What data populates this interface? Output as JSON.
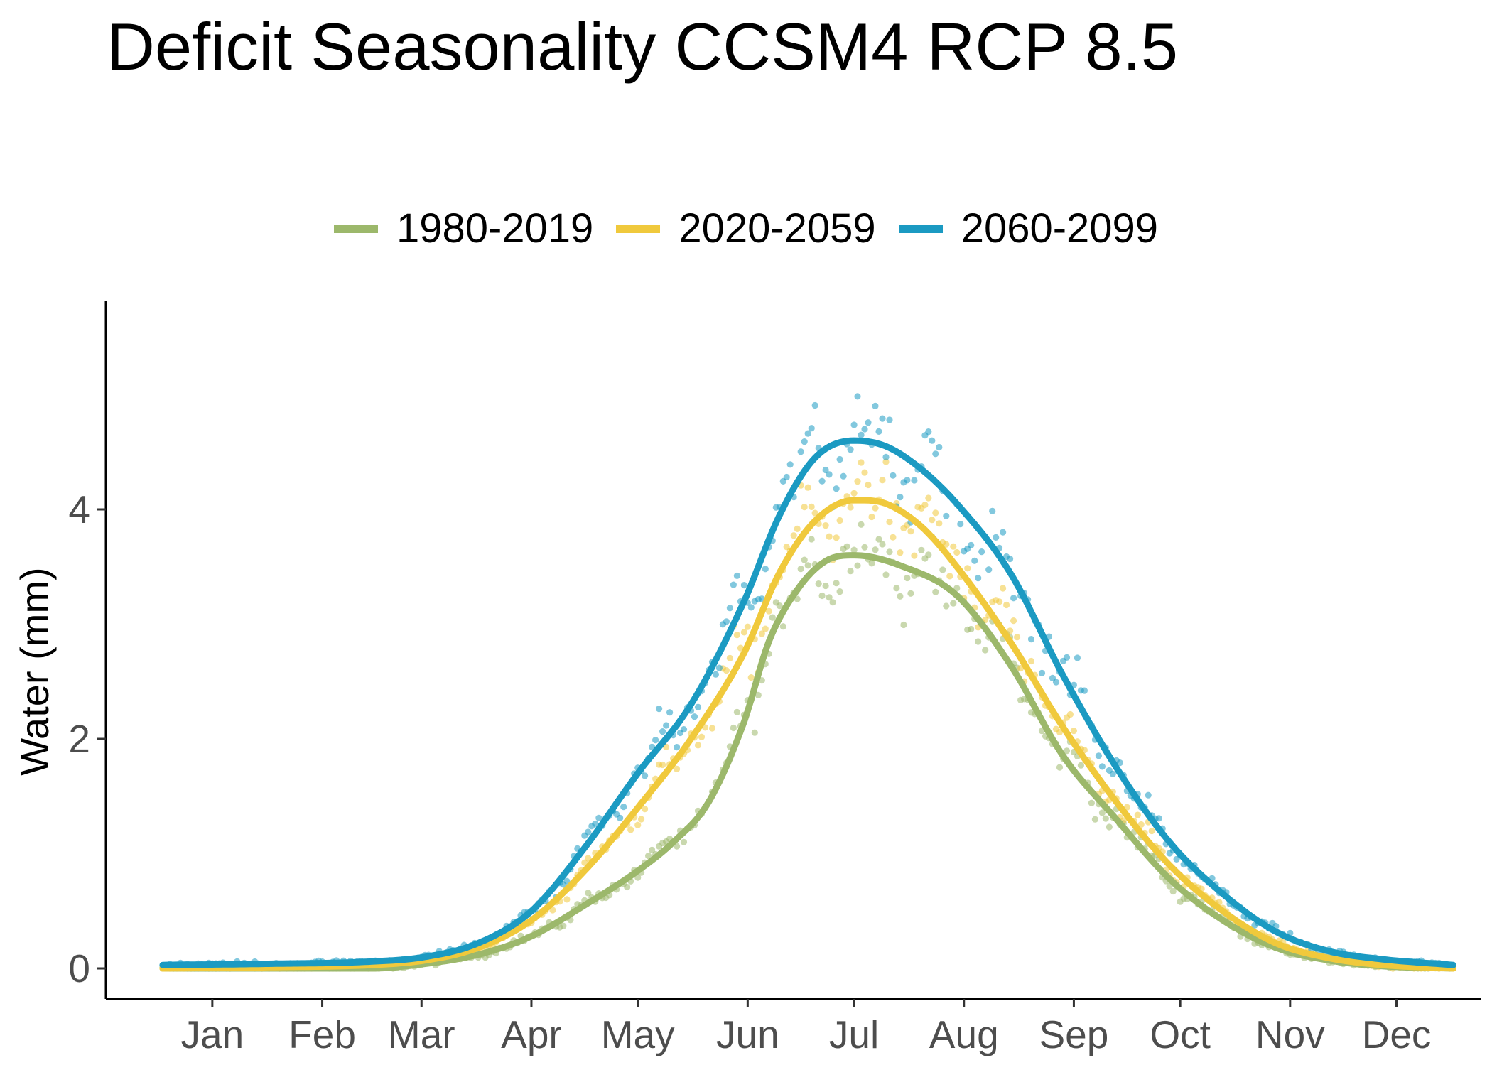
{
  "chart_data": {
    "type": "line",
    "title": "Deficit Seasonality CCSM4 RCP 8.5",
    "ylabel": "Water (mm)",
    "xlabel": "",
    "x_tick_labels": [
      "Jan",
      "Feb",
      "Mar",
      "Apr",
      "May",
      "Jun",
      "Jul",
      "Aug",
      "Sep",
      "Oct",
      "Nov",
      "Dec"
    ],
    "x_tick_days": [
      15,
      46,
      74,
      105,
      135,
      166,
      196,
      227,
      258,
      288,
      319,
      349
    ],
    "y_ticks": [
      0,
      2,
      4
    ],
    "ylim": [
      -0.28,
      5.8
    ],
    "xlim": [
      -1,
      382
    ],
    "grid": false,
    "legend_position": "top",
    "x_unit": "day of year",
    "series": [
      {
        "name": "1980-2019",
        "color": "#9cb86b",
        "smooth_x": [
          1,
          30,
          60,
          75,
          90,
          105,
          120,
          135,
          145,
          155,
          165,
          172,
          180,
          188,
          196,
          210,
          225,
          240,
          255,
          270,
          285,
          300,
          315,
          330,
          345,
          365
        ],
        "smooth_y": [
          0.0,
          0.0,
          0.0,
          0.04,
          0.12,
          0.28,
          0.55,
          0.85,
          1.1,
          1.45,
          2.15,
          2.85,
          3.3,
          3.55,
          3.6,
          3.5,
          3.25,
          2.65,
          1.85,
          1.3,
          0.78,
          0.42,
          0.18,
          0.07,
          0.02,
          0.0
        ]
      },
      {
        "name": "2020-2059",
        "color": "#f0c93c",
        "smooth_x": [
          1,
          30,
          60,
          75,
          90,
          105,
          120,
          135,
          150,
          165,
          175,
          185,
          196,
          205,
          215,
          225,
          240,
          255,
          270,
          285,
          300,
          315,
          330,
          345,
          365
        ],
        "smooth_y": [
          0.0,
          0.01,
          0.03,
          0.07,
          0.18,
          0.42,
          0.85,
          1.4,
          2.0,
          2.75,
          3.45,
          3.9,
          4.08,
          4.05,
          3.85,
          3.5,
          2.85,
          2.1,
          1.45,
          0.9,
          0.5,
          0.22,
          0.09,
          0.03,
          0.0
        ]
      },
      {
        "name": "2060-2099",
        "color": "#1b9ac2",
        "smooth_x": [
          1,
          30,
          60,
          75,
          90,
          105,
          120,
          135,
          150,
          165,
          175,
          185,
          196,
          205,
          215,
          225,
          240,
          255,
          270,
          285,
          300,
          315,
          330,
          345,
          365
        ],
        "smooth_y": [
          0.03,
          0.04,
          0.06,
          0.1,
          0.22,
          0.5,
          1.05,
          1.7,
          2.3,
          3.2,
          3.95,
          4.45,
          4.6,
          4.55,
          4.35,
          4.05,
          3.45,
          2.55,
          1.75,
          1.1,
          0.65,
          0.32,
          0.15,
          0.08,
          0.03
        ]
      }
    ]
  }
}
